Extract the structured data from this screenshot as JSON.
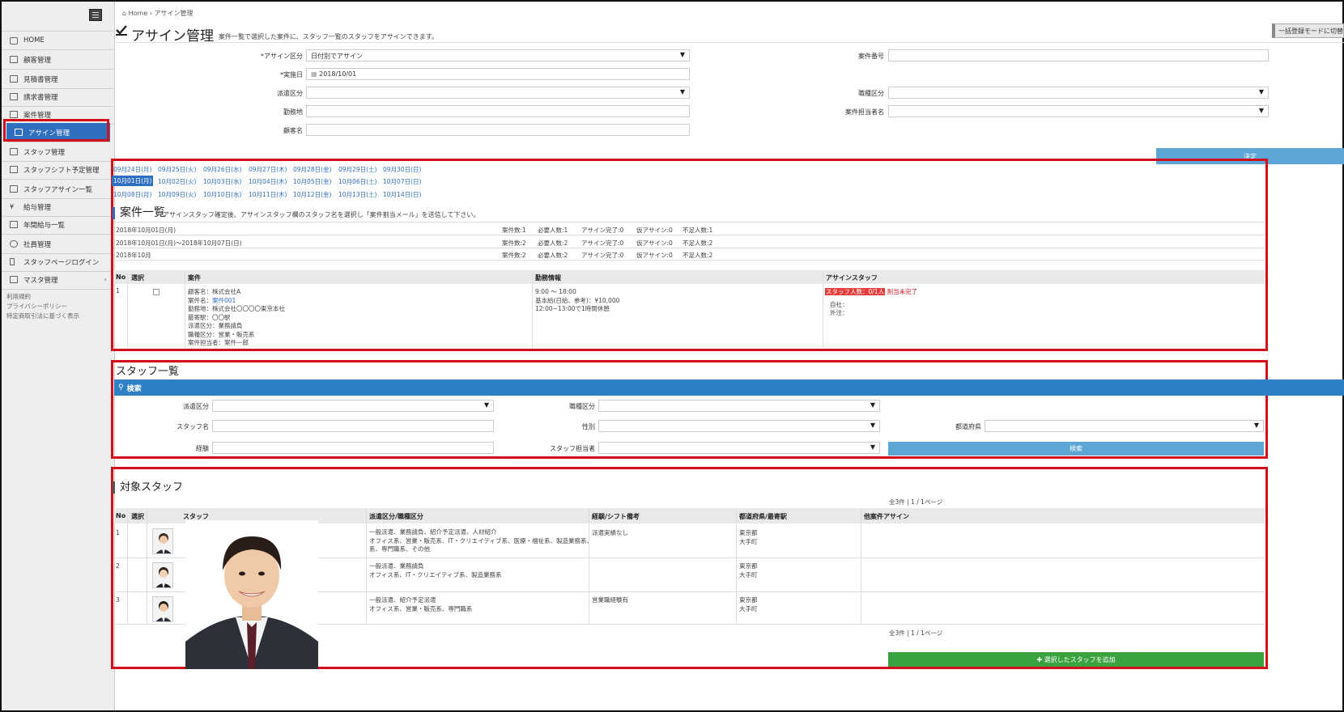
{
  "breadcrumb": {
    "home": "Home",
    "current": "アサイン管理"
  },
  "page": {
    "title": "アサイン管理",
    "description": "案件一覧で選択した案件に、スタッフ一覧のスタッフをアサインできます。",
    "bulk_mode_button": "一括登録モードに切替"
  },
  "sidebar": {
    "items": [
      {
        "label": "HOME",
        "icon": "home-icon"
      },
      {
        "label": "顧客管理",
        "icon": "building-icon"
      },
      {
        "label": "見積書管理",
        "icon": "document-icon"
      },
      {
        "label": "請求書管理",
        "icon": "document-icon"
      },
      {
        "label": "案件管理",
        "icon": "calendar-icon"
      },
      {
        "label": "アサイン管理",
        "icon": "check-icon"
      },
      {
        "label": "スタッフ管理",
        "icon": "users-icon"
      },
      {
        "label": "スタッフシフト予定管理",
        "icon": "table-icon"
      },
      {
        "label": "スタッフアサイン一覧",
        "icon": "list-icon"
      },
      {
        "label": "給与管理",
        "icon": "yen-icon"
      },
      {
        "label": "年間給与一覧",
        "icon": "bank-icon"
      },
      {
        "label": "社員管理",
        "icon": "user-icon"
      },
      {
        "label": "スタッフページログイン",
        "icon": "mobile-icon"
      },
      {
        "label": "マスタ管理",
        "icon": "grid-icon"
      }
    ],
    "master_chevron": "‹",
    "footer_links": [
      "利用規約",
      "プライバシーポリシー",
      "特定商取引法に基づく表示"
    ]
  },
  "form": {
    "assign_type": {
      "label": "*アサイン区分",
      "value": "日付別でアサイン"
    },
    "date": {
      "label": "*実施日",
      "value": "2018/10/01"
    },
    "dispatch_type": {
      "label": "派遣区分",
      "value": ""
    },
    "work_place": {
      "label": "勤務地",
      "value": ""
    },
    "customer_name": {
      "label": "顧客名",
      "value": ""
    },
    "project_no": {
      "label": "案件番号",
      "value": ""
    },
    "job_type": {
      "label": "職種区分",
      "value": ""
    },
    "project_owner": {
      "label": "案件担当者名",
      "value": ""
    },
    "decide_button": "決定"
  },
  "dates": {
    "rows": [
      [
        "09月24日(月)",
        "09月25日(火)",
        "09月26日(水)",
        "09月27日(木)",
        "09月28日(金)",
        "09月29日(土)",
        "09月30日(日)"
      ],
      [
        "10月01日(月)",
        "10月02日(火)",
        "10月03日(水)",
        "10月04日(木)",
        "10月05日(金)",
        "10月06日(土)",
        "10月07日(日)"
      ],
      [
        "10月08日(月)",
        "10月09日(火)",
        "10月10日(水)",
        "10月11日(木)",
        "10月12日(金)",
        "10月13日(土)",
        "10月14日(日)"
      ]
    ],
    "selected": "10月01日(月)"
  },
  "projects": {
    "title": "案件一覧",
    "note": "アサインスタッフ確定後、アサインスタッフ欄のスタッフ名を選択し「案件割当メール」を送信して下さい。",
    "summary": [
      {
        "period": "2018年10月01日(月)",
        "count": "案件数:1",
        "required": "必要人数:1",
        "done": "アサイン完了:0",
        "temp": "仮アサイン:0",
        "short": "不足人数:1"
      },
      {
        "period": "2018年10月01日(月)～2018年10月07日(日)",
        "count": "案件数:2",
        "required": "必要人数:2",
        "done": "アサイン完了:0",
        "temp": "仮アサイン:0",
        "short": "不足人数:2"
      },
      {
        "period": "2018年10月",
        "count": "案件数:2",
        "required": "必要人数:2",
        "done": "アサイン完了:0",
        "temp": "仮アサイン:0",
        "short": "不足人数:2"
      }
    ],
    "columns": {
      "no": "No",
      "select": "選択",
      "project": "案件",
      "work": "勤務情報",
      "staff": "アサインスタッフ"
    },
    "rows": [
      {
        "no": "1",
        "customer": "顧客名：株式会社A",
        "project_name_label": "案件名：",
        "project_name": "案件001",
        "workplace": "勤務地：株式会社〇〇〇〇東京本社",
        "station": "最寄駅：〇〇駅",
        "dispatch": "派遣区分：業務請負",
        "job": "職種区分：営業・販売系",
        "owner": "案件担当者：案件一郎",
        "time": "9:00 ～ 18:00",
        "pay": "基本給(日給、参考)：¥10,000",
        "break": "12:00~13:00で1時間休憩",
        "staff_count": "スタッフ人数：0/1人",
        "unassigned": "割当未完了",
        "own": "自社：",
        "external": "外注："
      }
    ]
  },
  "staff_search": {
    "title": "スタッフ一覧",
    "bar": "検索",
    "dispatch_type": {
      "label": "派遣区分",
      "value": ""
    },
    "job_type": {
      "label": "職種区分",
      "value": ""
    },
    "staff_name": {
      "label": "スタッフ名",
      "value": ""
    },
    "gender": {
      "label": "性別",
      "value": ""
    },
    "prefecture": {
      "label": "都道府県",
      "value": ""
    },
    "experience": {
      "label": "経験",
      "value": ""
    },
    "staff_owner": {
      "label": "スタッフ担当者",
      "value": ""
    },
    "search_button": "検索"
  },
  "target_staff": {
    "title": "対象スタッフ",
    "pagination": "全3件 | 1 / 1ページ",
    "columns": {
      "no": "No",
      "select": "選択",
      "staff": "スタッフ",
      "dispatch": "派遣区分/職種区分",
      "experience": "経験/シフト備考",
      "area": "都道府県/最寄駅",
      "other": "他案件アサイン"
    },
    "rows": [
      {
        "no": "1",
        "dispatch1": "一般派遣、業務請負、紹介予定派遣、人材紹介",
        "dispatch2": "オフィス系、営業・販売系、IT・クリエイティブ系、医療・福祉系、製造業務系、",
        "dispatch3": "系、専門職系、その他",
        "experience": "派遣実績なし",
        "pref": "東京都",
        "station": "大手町"
      },
      {
        "no": "2",
        "dispatch1": "一般派遣、業務請負",
        "dispatch2": "オフィス系、IT・クリエイティブ系、製造業務系",
        "dispatch3": "",
        "experience": "",
        "pref": "東京都",
        "station": "大手町"
      },
      {
        "no": "3",
        "dispatch1": "一般派遣、紹介予定派遣",
        "dispatch2": "オフィス系、営業・販売系、専門職系",
        "dispatch3": "",
        "experience": "営業職経験有",
        "pref": "東京都",
        "station": "大手町"
      }
    ],
    "add_button": "✚ 選択したスタッフを追加"
  },
  "colors": {
    "accent": "#2f6fc0",
    "highlight_box": "#d0101a",
    "primary_button": "#5ba6d6",
    "add_button": "#3aa33f"
  }
}
